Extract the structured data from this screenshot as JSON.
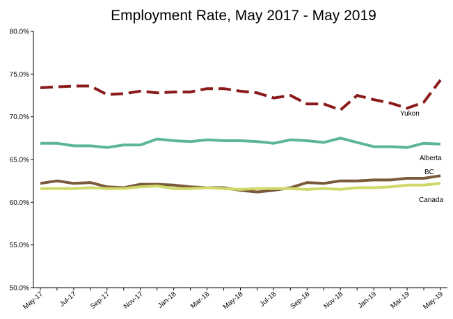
{
  "chart_data": {
    "type": "line",
    "title": "Employment Rate, May 2017 - May 2019",
    "xlabel": "",
    "ylabel": "",
    "ylim": [
      50,
      80
    ],
    "yticks": [
      "50.0%",
      "55.0%",
      "60.0%",
      "65.0%",
      "70.0%",
      "75.0%",
      "80.0%"
    ],
    "x": [
      "May-17",
      "Jun-17",
      "Jul-17",
      "Aug-17",
      "Sep-17",
      "Oct-17",
      "Nov-17",
      "Dec-17",
      "Jan-18",
      "Feb-18",
      "Mar-18",
      "Apr-18",
      "May-18",
      "Jun-18",
      "Jul-18",
      "Aug-18",
      "Sep-18",
      "Oct-18",
      "Nov-18",
      "Dec-18",
      "Jan-19",
      "Feb-19",
      "Mar-19",
      "Apr-19",
      "May-19"
    ],
    "xtick_labels": [
      "May-17",
      "Jul-17",
      "Sep-17",
      "Nov-17",
      "Jan-18",
      "Mar-18",
      "May-18",
      "Jul-18",
      "Sep-18",
      "Nov-18",
      "Jan-19",
      "Mar-19",
      "May-19"
    ],
    "grid": false,
    "legend": "inline labels at right",
    "series": [
      {
        "name": "Yukon",
        "color": "#8b1a1a",
        "dash": "dashed",
        "values": [
          73.4,
          73.5,
          73.6,
          73.6,
          72.6,
          72.7,
          73.0,
          72.8,
          72.9,
          72.9,
          73.3,
          73.3,
          73.0,
          72.8,
          72.2,
          72.5,
          71.5,
          71.5,
          70.8,
          72.5,
          72.0,
          71.6,
          71.0,
          71.7,
          74.3
        ]
      },
      {
        "name": "Alberta",
        "color": "#5cb59a",
        "dash": "solid",
        "values": [
          66.9,
          66.9,
          66.6,
          66.6,
          66.4,
          66.7,
          66.7,
          67.4,
          67.2,
          67.1,
          67.3,
          67.2,
          67.2,
          67.1,
          66.9,
          67.3,
          67.2,
          67.0,
          67.5,
          67.0,
          66.5,
          66.5,
          66.4,
          66.9,
          66.8
        ]
      },
      {
        "name": "BC",
        "color": "#7a5a3a",
        "dash": "solid",
        "values": [
          62.2,
          62.5,
          62.2,
          62.3,
          61.8,
          61.7,
          62.1,
          62.1,
          62.0,
          61.8,
          61.7,
          61.7,
          61.4,
          61.2,
          61.4,
          61.7,
          62.3,
          62.2,
          62.5,
          62.5,
          62.6,
          62.6,
          62.8,
          62.8,
          63.1
        ]
      },
      {
        "name": "Canada",
        "color": "#cfd96a",
        "dash": "solid",
        "values": [
          61.6,
          61.6,
          61.6,
          61.7,
          61.6,
          61.6,
          61.8,
          61.9,
          61.6,
          61.6,
          61.7,
          61.6,
          61.5,
          61.6,
          61.6,
          61.6,
          61.5,
          61.6,
          61.5,
          61.7,
          61.7,
          61.8,
          62.0,
          62.0,
          62.2
        ]
      }
    ],
    "series_labels": [
      {
        "name": "Yukon",
        "text": "Yukon"
      },
      {
        "name": "Alberta",
        "text": "Alberta"
      },
      {
        "name": "BC",
        "text": "BC"
      },
      {
        "name": "Canada",
        "text": "Canada"
      }
    ]
  }
}
